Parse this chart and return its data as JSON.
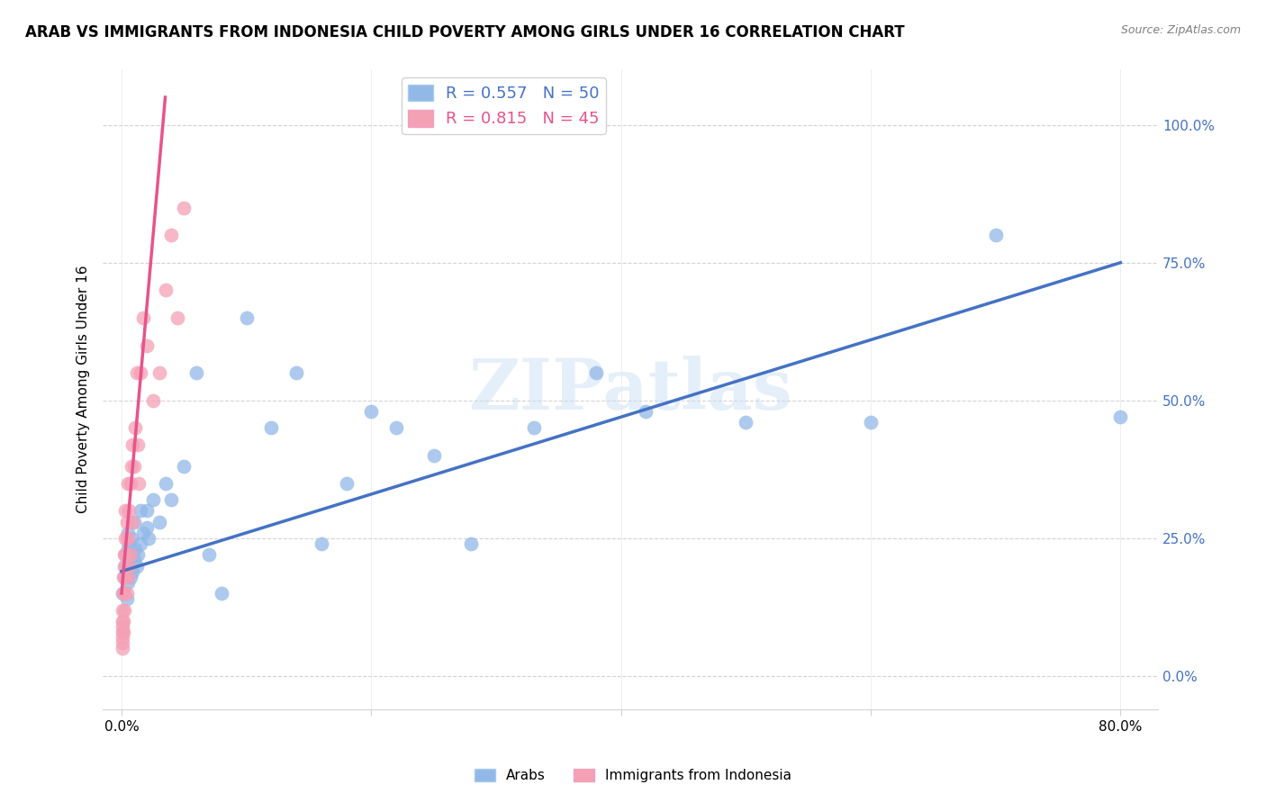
{
  "title": "ARAB VS IMMIGRANTS FROM INDONESIA CHILD POVERTY AMONG GIRLS UNDER 16 CORRELATION CHART",
  "source": "Source: ZipAtlas.com",
  "ylabel": "Child Poverty Among Girls Under 16",
  "ytick_labels": [
    "0.0%",
    "25.0%",
    "50.0%",
    "75.0%",
    "100.0%"
  ],
  "ytick_vals": [
    0,
    25,
    50,
    75,
    100
  ],
  "xtick_labels": [
    "0.0%",
    "",
    "",
    "",
    "80.0%"
  ],
  "xtick_vals": [
    0,
    20,
    40,
    60,
    80
  ],
  "xlim": [
    -1.5,
    83
  ],
  "ylim": [
    -6,
    110
  ],
  "legend_r1": "R = 0.557   N = 50",
  "legend_r2": "R = 0.815   N = 45",
  "color_arab": "#92b8e8",
  "color_indonesia": "#f4a0b5",
  "color_arab_line": "#4472c4",
  "color_indonesia_line": "#e8538a",
  "watermark": "ZIPatlas",
  "arab_x": [
    0.1,
    0.2,
    0.3,
    0.3,
    0.4,
    0.4,
    0.5,
    0.5,
    0.5,
    0.6,
    0.6,
    0.7,
    0.8,
    0.8,
    0.9,
    1.0,
    1.0,
    1.1,
    1.2,
    1.3,
    1.5,
    1.5,
    1.7,
    2.0,
    2.0,
    2.2,
    2.5,
    3.0,
    3.5,
    4.0,
    5.0,
    6.0,
    7.0,
    8.0,
    10.0,
    12.0,
    14.0,
    16.0,
    18.0,
    20.0,
    22.0,
    25.0,
    28.0,
    33.0,
    38.0,
    42.0,
    50.0,
    60.0,
    70.0,
    80.0
  ],
  "arab_y": [
    15,
    18,
    20,
    22,
    14,
    19,
    17,
    23,
    26,
    20,
    24,
    18,
    22,
    25,
    19,
    21,
    28,
    23,
    20,
    22,
    30,
    24,
    26,
    27,
    30,
    25,
    32,
    28,
    35,
    32,
    38,
    55,
    22,
    15,
    65,
    45,
    55,
    24,
    35,
    48,
    45,
    40,
    24,
    45,
    55,
    48,
    46,
    46,
    80,
    47
  ],
  "indonesia_x": [
    0.05,
    0.05,
    0.05,
    0.08,
    0.08,
    0.1,
    0.1,
    0.12,
    0.12,
    0.15,
    0.15,
    0.2,
    0.2,
    0.2,
    0.25,
    0.3,
    0.3,
    0.3,
    0.35,
    0.4,
    0.4,
    0.5,
    0.5,
    0.5,
    0.6,
    0.6,
    0.7,
    0.7,
    0.8,
    0.9,
    0.9,
    1.0,
    1.1,
    1.2,
    1.3,
    1.4,
    1.5,
    1.7,
    2.0,
    2.5,
    3.0,
    3.5,
    4.0,
    4.5,
    5.0
  ],
  "indonesia_y": [
    5,
    8,
    12,
    7,
    10,
    6,
    9,
    8,
    15,
    10,
    18,
    12,
    15,
    22,
    20,
    18,
    25,
    30,
    22,
    15,
    28,
    18,
    25,
    35,
    20,
    30,
    22,
    35,
    38,
    42,
    28,
    38,
    45,
    55,
    42,
    35,
    55,
    65,
    60,
    50,
    55,
    70,
    80,
    65,
    85
  ],
  "arab_line_x": [
    0,
    80
  ],
  "arab_line_y": [
    19,
    75
  ],
  "indo_line_x": [
    0,
    3.5
  ],
  "indo_line_y": [
    15,
    105
  ]
}
